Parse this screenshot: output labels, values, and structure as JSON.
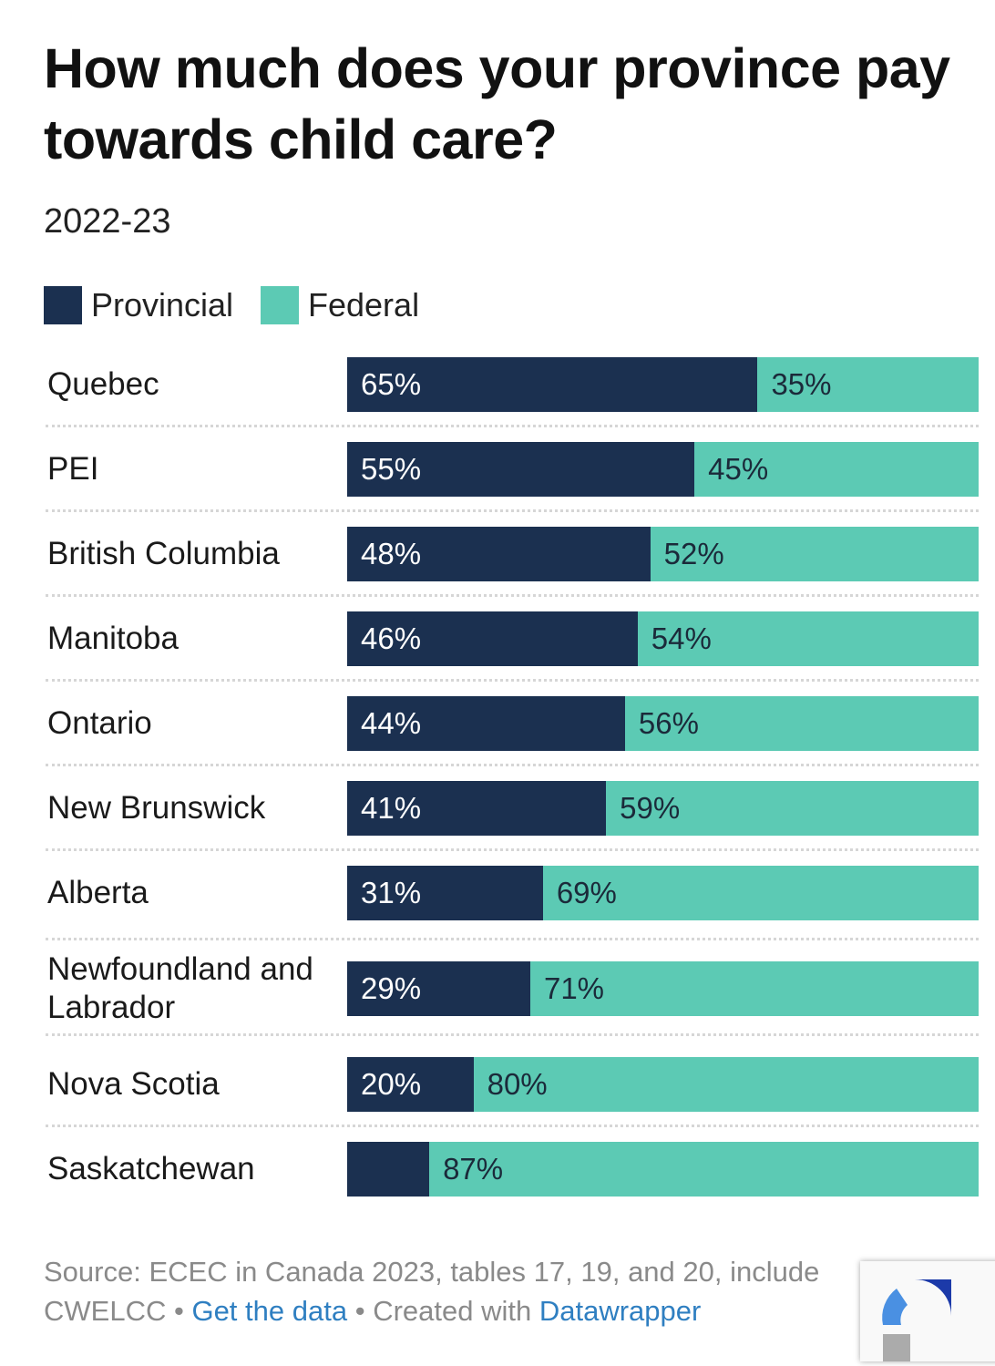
{
  "chart_data": {
    "type": "bar",
    "stacked": true,
    "orientation": "horizontal",
    "title": "How much does your province pay towards child care?",
    "subtitle": "2022-23",
    "legend": [
      "Provincial",
      "Federal"
    ],
    "colors": {
      "Provincial": "#1b3050",
      "Federal": "#5ccab4"
    },
    "categories": [
      "Quebec",
      "PEI",
      "British Columbia",
      "Manitoba",
      "Ontario",
      "New Brunswick",
      "Alberta",
      "Newfoundland and Labrador",
      "Nova Scotia",
      "Saskatchewan"
    ],
    "series": [
      {
        "name": "Provincial",
        "values": [
          65,
          55,
          48,
          46,
          44,
          41,
          31,
          29,
          20,
          13
        ],
        "labels": [
          "65%",
          "55%",
          "48%",
          "46%",
          "44%",
          "41%",
          "31%",
          "29%",
          "20%",
          ""
        ]
      },
      {
        "name": "Federal",
        "values": [
          35,
          45,
          52,
          54,
          56,
          59,
          69,
          71,
          80,
          87
        ],
        "labels": [
          "35%",
          "45%",
          "52%",
          "54%",
          "56%",
          "59%",
          "69%",
          "71%",
          "80%",
          "87%"
        ]
      }
    ],
    "xlim": [
      0,
      100
    ]
  },
  "footer": {
    "source": "Source: ECEC in Canada 2023, tables 17, 19, and 20, include",
    "source2": "CWELCC",
    "sep": "•",
    "get_data": "Get the data",
    "created": "Created with",
    "datawrapper": "Datawrapper"
  }
}
